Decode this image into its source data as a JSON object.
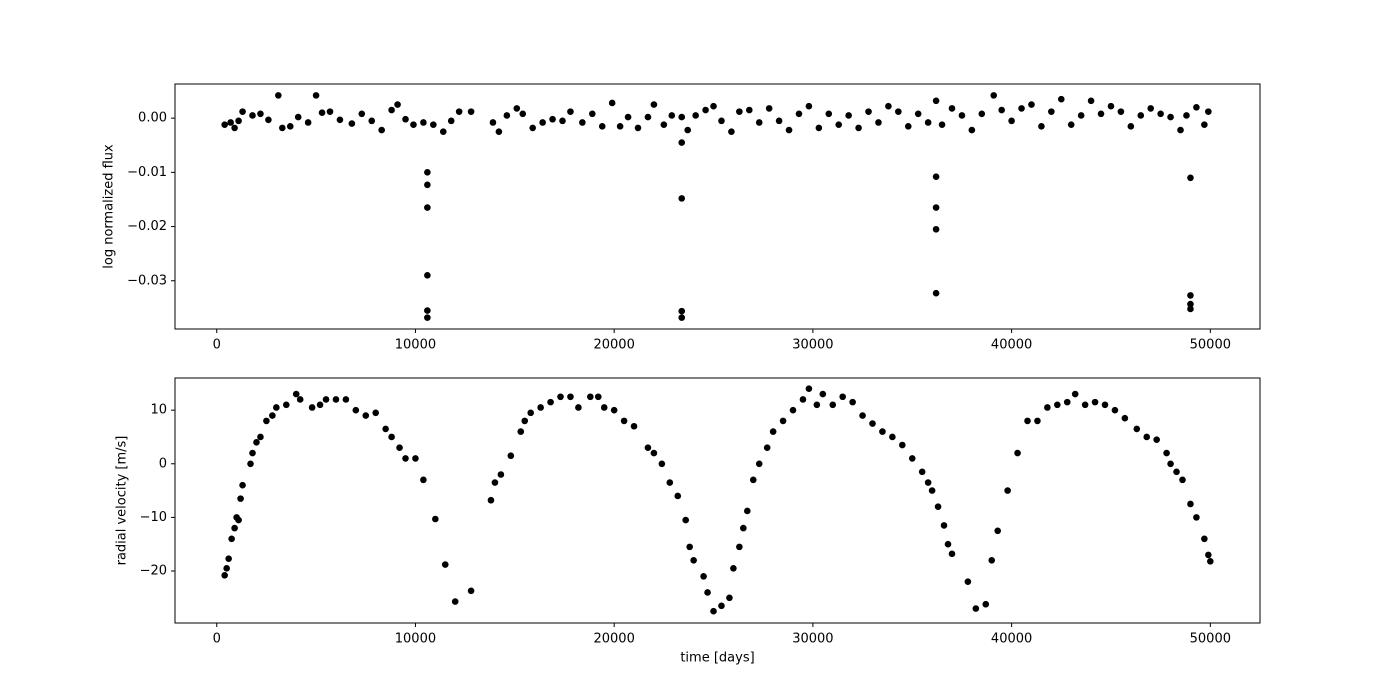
{
  "chart_data": [
    {
      "type": "scatter",
      "ylabel": "log normalized flux",
      "color": "#000000",
      "xlim": [
        -2100,
        52500
      ],
      "ylim": [
        -0.0389,
        0.0063
      ],
      "xticks": [
        0,
        10000,
        20000,
        30000,
        40000,
        50000
      ],
      "yticks": [
        {
          "value": -0.03,
          "label": "−0.03"
        },
        {
          "value": -0.02,
          "label": "−0.02"
        },
        {
          "value": -0.01,
          "label": "−0.01"
        },
        {
          "value": 0,
          "label": "0.00"
        }
      ],
      "x": [
        400,
        700,
        900,
        1100,
        1300,
        1800,
        2200,
        2600,
        3100,
        3300,
        3700,
        4100,
        4600,
        5000,
        5300,
        5700,
        6200,
        6800,
        7300,
        7800,
        8300,
        8800,
        9100,
        9500,
        9900,
        10400,
        10600,
        10600,
        10600,
        10600,
        10600,
        10600,
        10900,
        11400,
        11800,
        12200,
        12800,
        13900,
        14200,
        14600,
        15100,
        15400,
        15900,
        16400,
        16900,
        17400,
        17800,
        18400,
        18900,
        19400,
        19900,
        20300,
        20700,
        21200,
        21700,
        22000,
        22500,
        22900,
        23400,
        23400,
        23400,
        23400,
        23400,
        23700,
        24100,
        24600,
        25000,
        25400,
        25900,
        26300,
        26800,
        27300,
        27800,
        28300,
        28800,
        29300,
        29800,
        30300,
        30800,
        31300,
        31800,
        32300,
        32800,
        33300,
        33800,
        34300,
        34800,
        35300,
        35800,
        36200,
        36200,
        36200,
        36200,
        36200,
        36500,
        37000,
        37500,
        38000,
        38500,
        39100,
        39500,
        40000,
        40500,
        41000,
        41500,
        42000,
        42500,
        43000,
        43500,
        44000,
        44500,
        45000,
        45500,
        46000,
        46500,
        47000,
        47500,
        48000,
        48500,
        48800,
        49000,
        49000,
        49000,
        49000,
        49300,
        49700,
        49900
      ],
      "values": [
        -0.0012,
        -0.0008,
        -0.0018,
        -0.0005,
        0.0012,
        0.0005,
        0.0008,
        -0.0003,
        0.0042,
        -0.0018,
        -0.0015,
        0.0002,
        -0.0008,
        0.0042,
        0.001,
        0.0012,
        -0.0003,
        -0.001,
        0.0008,
        -0.0005,
        -0.0022,
        0.0015,
        0.0025,
        -0.0002,
        -0.0012,
        -0.0008,
        -0.01,
        -0.0123,
        -0.0165,
        -0.029,
        -0.0355,
        -0.0368,
        -0.0012,
        -0.0025,
        -0.0005,
        0.0012,
        0.0012,
        -0.0008,
        -0.0025,
        0.0005,
        0.0018,
        0.0008,
        -0.0018,
        -0.0008,
        -0.0002,
        -0.0005,
        0.0012,
        -0.0008,
        0.0008,
        -0.0015,
        0.0028,
        -0.0015,
        0.0002,
        -0.0018,
        0.0002,
        0.0025,
        -0.0012,
        0.0005,
        -0.0045,
        -0.0148,
        -0.0356,
        -0.0368,
        0.0002,
        -0.0022,
        0.0005,
        0.0015,
        0.0022,
        -0.0005,
        -0.0025,
        0.0012,
        0.0015,
        -0.0008,
        0.0018,
        -0.0005,
        -0.0022,
        0.0008,
        0.0022,
        -0.0018,
        0.0008,
        -0.0012,
        0.0005,
        -0.0018,
        0.0012,
        -0.0008,
        0.0022,
        0.0012,
        -0.0015,
        0.0008,
        -0.0008,
        0.0032,
        -0.0108,
        -0.0165,
        -0.0205,
        -0.0323,
        -0.0012,
        0.0018,
        0.0005,
        -0.0022,
        0.0008,
        0.0042,
        0.0015,
        -0.0005,
        0.0018,
        0.0025,
        -0.0015,
        0.0012,
        0.0035,
        -0.0012,
        0.0005,
        0.0032,
        0.0008,
        0.0022,
        0.0012,
        -0.0015,
        0.0005,
        0.0018,
        0.0008,
        0.0002,
        -0.0022,
        0.0005,
        -0.011,
        -0.0327,
        -0.0343,
        -0.0352,
        0.002,
        -0.0012,
        0.0012
      ]
    },
    {
      "type": "scatter",
      "ylabel": "radial velocity [m/s]",
      "xlabel": "time [days]",
      "color": "#000000",
      "xlim": [
        -2100,
        52500
      ],
      "ylim": [
        -29.7,
        16.0
      ],
      "xticks": [
        0,
        10000,
        20000,
        30000,
        40000,
        50000
      ],
      "yticks": [
        {
          "value": -20,
          "label": "−20"
        },
        {
          "value": -10,
          "label": "−10"
        },
        0,
        10
      ],
      "x": [
        400,
        500,
        600,
        750,
        900,
        1000,
        1100,
        1200,
        1300,
        1700,
        1800,
        2000,
        2200,
        2500,
        2800,
        3000,
        3500,
        4000,
        4200,
        4800,
        5200,
        5500,
        6000,
        6500,
        7000,
        7500,
        8000,
        8500,
        8800,
        9200,
        9500,
        10000,
        10400,
        11000,
        11500,
        12000,
        12800,
        13800,
        14000,
        14300,
        14800,
        15300,
        15500,
        15800,
        16300,
        16800,
        17300,
        17800,
        18200,
        18800,
        19200,
        19500,
        20000,
        20500,
        21000,
        21700,
        22000,
        22400,
        22800,
        23200,
        23600,
        23800,
        24000,
        24500,
        24700,
        25000,
        25400,
        25800,
        26000,
        26300,
        26500,
        26700,
        27000,
        27300,
        27700,
        28000,
        28500,
        29000,
        29500,
        29800,
        30200,
        30500,
        31000,
        31500,
        32000,
        32500,
        33000,
        33500,
        34000,
        34500,
        35000,
        35500,
        35800,
        36000,
        36300,
        36600,
        36800,
        37000,
        37800,
        38200,
        38700,
        39000,
        39300,
        39800,
        40300,
        40800,
        41300,
        41800,
        42300,
        42800,
        43200,
        43700,
        44200,
        44700,
        45200,
        45700,
        46300,
        46800,
        47300,
        47800,
        48000,
        48300,
        48600,
        49000,
        49300,
        49700,
        49900,
        50000
      ],
      "values": [
        -20.8,
        -19.5,
        -17.7,
        -14,
        -12,
        -10,
        -10.5,
        -6.5,
        -4,
        0,
        2,
        4,
        5,
        8,
        9,
        10.5,
        11,
        13,
        12,
        10.5,
        11,
        12,
        12,
        12,
        10,
        9,
        9.5,
        6.5,
        5,
        3,
        1,
        1,
        -3,
        -10.3,
        -18.8,
        -25.7,
        -23.7,
        -6.8,
        -3.5,
        -2,
        1.5,
        6,
        8,
        9.5,
        10.5,
        11.5,
        12.5,
        12.5,
        10.5,
        12.5,
        12.5,
        10.5,
        10,
        8,
        7,
        3,
        2,
        0,
        -3.5,
        -6,
        -10.5,
        -15.5,
        -18,
        -21,
        -24,
        -27.5,
        -26.5,
        -25,
        -19.5,
        -15.5,
        -12,
        -8.8,
        -3,
        0,
        3,
        6,
        8,
        10,
        12,
        14,
        11,
        13,
        11,
        12.5,
        11.5,
        9,
        7.5,
        6,
        5,
        3.5,
        1,
        -1.5,
        -3.5,
        -5,
        -8,
        -11.5,
        -15,
        -16.8,
        -22,
        -27,
        -26.2,
        -18,
        -12.5,
        -5,
        2,
        8,
        8,
        10.5,
        11,
        11.5,
        13,
        11,
        11.5,
        11,
        10,
        8.5,
        6.5,
        5,
        4.5,
        2,
        0,
        -1.5,
        -3,
        -7.5,
        -10,
        -14,
        -17,
        -18.2
      ]
    }
  ]
}
